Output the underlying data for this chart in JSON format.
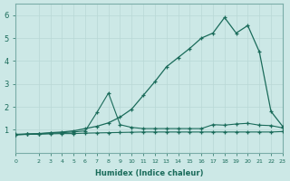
{
  "xlabel": "Humidex (Indice chaleur)",
  "xlim": [
    0,
    23
  ],
  "ylim": [
    0,
    6.5
  ],
  "yticks": [
    1,
    2,
    3,
    4,
    5,
    6
  ],
  "xticks": [
    0,
    2,
    3,
    4,
    5,
    6,
    7,
    8,
    9,
    10,
    11,
    12,
    13,
    14,
    15,
    16,
    17,
    18,
    19,
    20,
    21,
    22,
    23
  ],
  "bg_color": "#cce8e6",
  "line_color": "#1a6b5a",
  "grid_color": "#b8d8d5",
  "line1_x": [
    0,
    1,
    2,
    3,
    4,
    5,
    6,
    7,
    8,
    9,
    10,
    11,
    12,
    13,
    14,
    15,
    16,
    17,
    18,
    19,
    20,
    21,
    22,
    23
  ],
  "line1_y": [
    0.78,
    0.8,
    0.83,
    0.87,
    0.9,
    0.95,
    1.05,
    1.15,
    1.3,
    1.55,
    1.9,
    2.5,
    3.1,
    3.75,
    4.15,
    4.55,
    5.0,
    5.22,
    5.9,
    5.22,
    5.55,
    4.4,
    1.8,
    1.15
  ],
  "line2_x": [
    0,
    1,
    2,
    3,
    4,
    5,
    6,
    7,
    8,
    9,
    10,
    11,
    12,
    13,
    14,
    15,
    16,
    17,
    18,
    19,
    20,
    21,
    22,
    23
  ],
  "line2_y": [
    0.8,
    0.82,
    0.83,
    0.85,
    0.87,
    0.9,
    0.95,
    1.75,
    2.6,
    1.22,
    1.1,
    1.05,
    1.05,
    1.05,
    1.05,
    1.05,
    1.05,
    1.22,
    1.2,
    1.25,
    1.28,
    1.2,
    1.18,
    1.08
  ],
  "line3_x": [
    0,
    1,
    2,
    3,
    4,
    5,
    6,
    7,
    8,
    9,
    10,
    11,
    12,
    13,
    14,
    15,
    16,
    17,
    18,
    19,
    20,
    21,
    22,
    23
  ],
  "line3_y": [
    0.78,
    0.8,
    0.8,
    0.82,
    0.83,
    0.83,
    0.85,
    0.86,
    0.87,
    0.88,
    0.89,
    0.9,
    0.9,
    0.9,
    0.9,
    0.9,
    0.9,
    0.9,
    0.9,
    0.9,
    0.9,
    0.9,
    0.9,
    0.92
  ]
}
